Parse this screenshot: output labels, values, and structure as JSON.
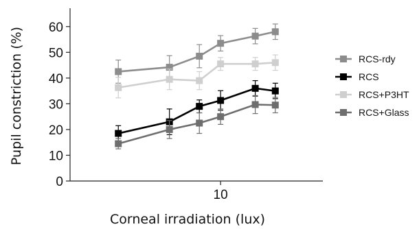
{
  "chart_data": {
    "type": "line",
    "title": "",
    "xlabel": "Corneal irradiation (lux)",
    "ylabel": "Pupil constriction (%)",
    "x_scale": "log",
    "xlim": [
      1.3,
      40
    ],
    "ylim": [
      0,
      65
    ],
    "y_ticks": [
      "0",
      "10",
      "20",
      "30",
      "40",
      "50",
      "60"
    ],
    "x_tick_labels": [
      "10"
    ],
    "x": [
      2.5,
      5,
      7.5,
      10,
      16,
      21
    ],
    "legend_position": "right",
    "series": [
      {
        "name": "RCS-rdy",
        "color": "#8c8c8c",
        "values": [
          42.5,
          44.2,
          48.5,
          53.5,
          56.3,
          58.0
        ],
        "errors": [
          4.5,
          4.5,
          4.5,
          3.0,
          3.0,
          3.0
        ]
      },
      {
        "name": "RCS",
        "color": "#000000",
        "values": [
          18.5,
          23.0,
          29.0,
          31.3,
          36.0,
          35.0
        ],
        "errors": [
          3.0,
          5.0,
          2.5,
          3.8,
          3.0,
          3.0
        ]
      },
      {
        "name": "RCS+P3HT",
        "color": "#cfcfcf",
        "values": [
          36.3,
          39.5,
          39.0,
          45.5,
          45.5,
          46.0
        ],
        "errors": [
          4.0,
          4.0,
          3.5,
          2.5,
          2.5,
          3.0
        ]
      },
      {
        "name": "RCS+Glass",
        "color": "#6e6e6e",
        "values": [
          14.5,
          20.0,
          22.5,
          25.0,
          29.7,
          29.5
        ],
        "errors": [
          2.0,
          3.5,
          4.0,
          3.0,
          3.5,
          3.0
        ]
      }
    ]
  }
}
